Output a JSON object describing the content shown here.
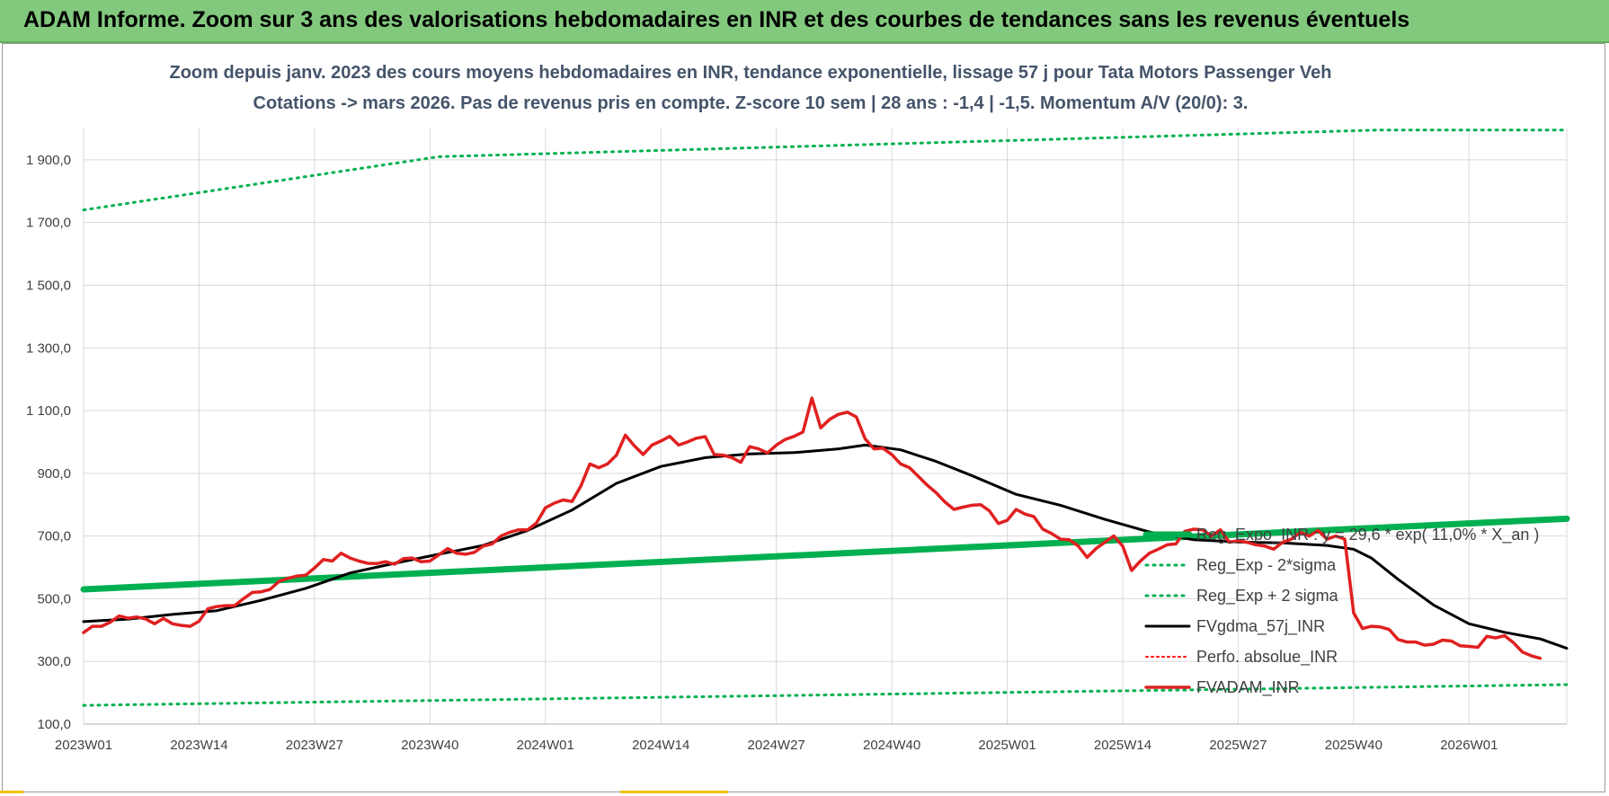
{
  "page": {
    "banner_title": "ADAM Informe. Zoom sur 3 ans des valorisations hebdomadaires en INR et des courbes de tendances sans les revenus éventuels"
  },
  "colors": {
    "banner": "#82c97d",
    "exp_trend": "#00b050",
    "sigma_bands": "#00b050",
    "fvgdma": "#000000",
    "perfo": "#ff0000",
    "fvadam": "#e02020",
    "subtitle": "#44546a"
  },
  "chart_data": {
    "type": "line",
    "title": "Zoom depuis janv. 2023 des cours moyens hebdomadaires en INR, tendance exponentielle, lissage 57 j pour Tata Motors Passenger Veh",
    "subtitle": "Cotations -> mars 2026. Pas de revenus pris en compte. Z-score 10 sem | 28 ans : -1,4 | -1,5. Momentum A/V (20/0): 3.",
    "xlabel": "",
    "ylabel": "",
    "x_start_label": "2023W01",
    "x_tick_labels": [
      "2023W01",
      "2023W14",
      "2023W27",
      "2023W40",
      "2024W01",
      "2024W14",
      "2024W27",
      "2024W40",
      "2025W01",
      "2025W14",
      "2025W27",
      "2025W40",
      "2026W01"
    ],
    "x_week_count": 168,
    "y_ticks": [
      100,
      300,
      500,
      700,
      900,
      1100,
      1300,
      1500,
      1700,
      1900
    ],
    "y_tick_labels": [
      "100,0",
      "300,0",
      "500,0",
      "700,0",
      "900,0",
      "1 100,0",
      "1 300,0",
      "1 500,0",
      "1 700,0",
      "1 900,0"
    ],
    "ylim": [
      100,
      2000
    ],
    "grid": true,
    "legend_position": "right",
    "series": [
      {
        "name": "Reg_Expo_INR : y = 29,6 * exp( 11,0% *  X_an )",
        "style": "solid-thick",
        "points": [
          [
            0,
            530
          ],
          [
            167,
            755
          ]
        ]
      },
      {
        "name": "Reg_Exp - 2*sigma",
        "style": "dotted",
        "points": [
          [
            0,
            160
          ],
          [
            167,
            226
          ]
        ]
      },
      {
        "name": "Reg_Exp + 2 sigma",
        "style": "dotted",
        "points": [
          [
            0,
            1740
          ],
          [
            40,
            1910
          ],
          [
            146,
            1995
          ],
          [
            167,
            1995
          ]
        ]
      },
      {
        "name": "FVgdma_57j_INR",
        "style": "solid",
        "points": [
          [
            0,
            427
          ],
          [
            5,
            435
          ],
          [
            10,
            450
          ],
          [
            15,
            462
          ],
          [
            20,
            495
          ],
          [
            25,
            533
          ],
          [
            30,
            582
          ],
          [
            35,
            613
          ],
          [
            40,
            642
          ],
          [
            45,
            670
          ],
          [
            50,
            718
          ],
          [
            55,
            783
          ],
          [
            60,
            868
          ],
          [
            65,
            922
          ],
          [
            70,
            950
          ],
          [
            75,
            962
          ],
          [
            80,
            966
          ],
          [
            85,
            978
          ],
          [
            88,
            990
          ],
          [
            92,
            975
          ],
          [
            96,
            938
          ],
          [
            100,
            893
          ],
          [
            105,
            833
          ],
          [
            110,
            798
          ],
          [
            115,
            753
          ],
          [
            120,
            713
          ],
          [
            125,
            688
          ],
          [
            130,
            681
          ],
          [
            135,
            678
          ],
          [
            140,
            670
          ],
          [
            143,
            658
          ],
          [
            145,
            630
          ],
          [
            148,
            562
          ],
          [
            152,
            480
          ],
          [
            156,
            420
          ],
          [
            160,
            393
          ],
          [
            164,
            372
          ],
          [
            167,
            342
          ]
        ]
      },
      {
        "name": "Perfo. absolue_INR",
        "style": "dotted",
        "points": []
      },
      {
        "name": "FVADAM_INR",
        "style": "solid-thick",
        "points": [
          [
            0,
            392
          ],
          [
            1,
            412
          ],
          [
            2,
            412
          ],
          [
            3,
            425
          ],
          [
            4,
            445
          ],
          [
            5,
            438
          ],
          [
            6,
            442
          ],
          [
            7,
            435
          ],
          [
            8,
            420
          ],
          [
            9,
            437
          ],
          [
            10,
            420
          ],
          [
            11,
            415
          ],
          [
            12,
            412
          ],
          [
            13,
            428
          ],
          [
            14,
            468
          ],
          [
            15,
            475
          ],
          [
            16,
            478
          ],
          [
            17,
            478
          ],
          [
            18,
            500
          ],
          [
            19,
            520
          ],
          [
            20,
            522
          ],
          [
            21,
            530
          ],
          [
            22,
            555
          ],
          [
            23,
            565
          ],
          [
            24,
            572
          ],
          [
            25,
            575
          ],
          [
            26,
            598
          ],
          [
            27,
            625
          ],
          [
            28,
            620
          ],
          [
            29,
            645
          ],
          [
            30,
            630
          ],
          [
            31,
            620
          ],
          [
            32,
            613
          ],
          [
            33,
            612
          ],
          [
            34,
            618
          ],
          [
            35,
            610
          ],
          [
            36,
            628
          ],
          [
            37,
            630
          ],
          [
            38,
            618
          ],
          [
            39,
            620
          ],
          [
            40,
            640
          ],
          [
            41,
            660
          ],
          [
            42,
            645
          ],
          [
            43,
            642
          ],
          [
            44,
            648
          ],
          [
            45,
            668
          ],
          [
            46,
            675
          ],
          [
            47,
            700
          ],
          [
            48,
            712
          ],
          [
            49,
            720
          ],
          [
            50,
            720
          ],
          [
            51,
            742
          ],
          [
            52,
            790
          ],
          [
            53,
            805
          ],
          [
            54,
            815
          ],
          [
            55,
            810
          ],
          [
            56,
            860
          ],
          [
            57,
            930
          ],
          [
            58,
            918
          ],
          [
            59,
            930
          ],
          [
            60,
            958
          ],
          [
            61,
            1022
          ],
          [
            62,
            988
          ],
          [
            63,
            960
          ],
          [
            64,
            990
          ],
          [
            65,
            1003
          ],
          [
            66,
            1018
          ],
          [
            67,
            990
          ],
          [
            68,
            1000
          ],
          [
            69,
            1012
          ],
          [
            70,
            1017
          ],
          [
            71,
            960
          ],
          [
            72,
            958
          ],
          [
            73,
            950
          ],
          [
            74,
            935
          ],
          [
            75,
            985
          ],
          [
            76,
            978
          ],
          [
            77,
            965
          ],
          [
            78,
            990
          ],
          [
            79,
            1008
          ],
          [
            80,
            1018
          ],
          [
            81,
            1032
          ],
          [
            82,
            1140
          ],
          [
            83,
            1045
          ],
          [
            84,
            1072
          ],
          [
            85,
            1088
          ],
          [
            86,
            1095
          ],
          [
            87,
            1080
          ],
          [
            88,
            1010
          ],
          [
            89,
            978
          ],
          [
            90,
            980
          ],
          [
            91,
            960
          ],
          [
            92,
            930
          ],
          [
            93,
            918
          ],
          [
            94,
            890
          ],
          [
            95,
            862
          ],
          [
            96,
            838
          ],
          [
            97,
            808
          ],
          [
            98,
            785
          ],
          [
            99,
            792
          ],
          [
            100,
            798
          ],
          [
            101,
            800
          ],
          [
            102,
            780
          ],
          [
            103,
            740
          ],
          [
            104,
            750
          ],
          [
            105,
            785
          ],
          [
            106,
            770
          ],
          [
            107,
            762
          ],
          [
            108,
            722
          ],
          [
            109,
            708
          ],
          [
            110,
            690
          ],
          [
            111,
            688
          ],
          [
            112,
            668
          ],
          [
            113,
            632
          ],
          [
            114,
            660
          ],
          [
            115,
            680
          ],
          [
            116,
            700
          ],
          [
            117,
            668
          ],
          [
            118,
            590
          ],
          [
            119,
            620
          ],
          [
            120,
            645
          ],
          [
            121,
            658
          ],
          [
            122,
            672
          ],
          [
            123,
            675
          ],
          [
            124,
            715
          ],
          [
            125,
            722
          ],
          [
            126,
            720
          ],
          [
            127,
            700
          ],
          [
            128,
            720
          ],
          [
            129,
            680
          ],
          [
            130,
            685
          ],
          [
            131,
            680
          ],
          [
            132,
            672
          ],
          [
            133,
            668
          ],
          [
            134,
            658
          ],
          [
            135,
            680
          ],
          [
            136,
            690
          ],
          [
            137,
            712
          ],
          [
            138,
            700
          ],
          [
            139,
            718
          ],
          [
            140,
            690
          ],
          [
            141,
            700
          ],
          [
            142,
            690
          ],
          [
            143,
            455
          ],
          [
            144,
            405
          ],
          [
            145,
            412
          ],
          [
            146,
            410
          ],
          [
            147,
            402
          ],
          [
            148,
            370
          ],
          [
            149,
            362
          ],
          [
            150,
            362
          ],
          [
            151,
            352
          ],
          [
            152,
            355
          ],
          [
            153,
            368
          ],
          [
            154,
            365
          ],
          [
            155,
            350
          ],
          [
            156,
            348
          ],
          [
            157,
            345
          ],
          [
            158,
            380
          ],
          [
            159,
            375
          ],
          [
            160,
            382
          ],
          [
            161,
            360
          ],
          [
            162,
            330
          ],
          [
            163,
            318
          ],
          [
            164,
            310
          ]
        ]
      }
    ]
  }
}
